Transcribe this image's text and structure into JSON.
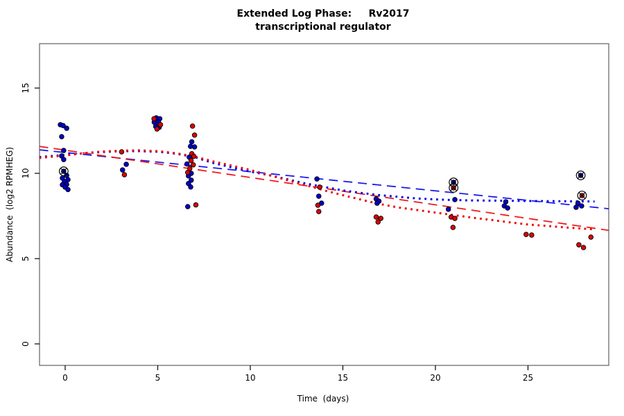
{
  "figure": {
    "title_line1": "Extended Log Phase:     Rv2017",
    "title_line2": "transcriptional regulator"
  },
  "chart_data": {
    "type": "scatter",
    "title": "Extended Log Phase: Rv2017 transcriptional regulator",
    "xlabel": "Time  (days)",
    "ylabel": "Abundance  (log2 RPMHEG)",
    "xticks": [
      0,
      5,
      10,
      15,
      20,
      25
    ],
    "yticks": [
      0,
      5,
      10,
      15
    ],
    "xlim": [
      -1.4,
      29.4
    ],
    "ylim": [
      -1.3,
      17.6
    ],
    "grid": false,
    "legend": "none",
    "frame_color": "#777777",
    "colors": {
      "blue_point": "#0000CC",
      "red_point": "#DD0000",
      "blue_line": "#1A1AEE",
      "red_line": "#EE1A1A",
      "flag_ring": "#000000"
    },
    "series": [
      {
        "name": "blue-points",
        "type": "points",
        "color": "#0000CC",
        "points": [
          [
            -0.26,
            12.85
          ],
          [
            -0.11,
            12.8
          ],
          [
            0.08,
            12.64
          ],
          [
            -0.19,
            12.15
          ],
          [
            -0.08,
            11.34
          ],
          [
            -0.19,
            11.02
          ],
          [
            -0.08,
            10.81
          ],
          [
            0.08,
            9.88
          ],
          [
            -0.15,
            9.72
          ],
          [
            0.15,
            9.63
          ],
          [
            -0.04,
            9.51
          ],
          [
            0.08,
            9.35
          ],
          [
            -0.15,
            9.33
          ],
          [
            0.0,
            9.19
          ],
          [
            0.15,
            9.05
          ],
          [
            3.3,
            10.53
          ],
          [
            3.1,
            10.2
          ],
          [
            4.92,
            13.25
          ],
          [
            5.11,
            13.2
          ],
          [
            4.81,
            13.0
          ],
          [
            5.04,
            13.0
          ],
          [
            4.89,
            12.75
          ],
          [
            5.08,
            12.7
          ],
          [
            6.84,
            11.85
          ],
          [
            6.77,
            11.58
          ],
          [
            6.99,
            11.55
          ],
          [
            6.7,
            10.95
          ],
          [
            6.58,
            10.55
          ],
          [
            6.81,
            10.0
          ],
          [
            6.66,
            9.85
          ],
          [
            6.81,
            9.6
          ],
          [
            6.66,
            9.4
          ],
          [
            6.78,
            9.2
          ],
          [
            6.62,
            8.05
          ],
          [
            13.6,
            9.67
          ],
          [
            13.7,
            8.66
          ],
          [
            13.85,
            8.25
          ],
          [
            16.8,
            8.5
          ],
          [
            16.95,
            8.37
          ],
          [
            16.85,
            8.25
          ],
          [
            21.05,
            8.46
          ],
          [
            20.7,
            7.89
          ],
          [
            23.8,
            8.33
          ],
          [
            23.72,
            8.09
          ],
          [
            23.9,
            7.97
          ],
          [
            27.7,
            8.25
          ],
          [
            27.9,
            8.09
          ],
          [
            27.6,
            8.01
          ]
        ]
      },
      {
        "name": "red-points",
        "type": "points",
        "color": "#DD0000",
        "points": [
          [
            3.05,
            11.26
          ],
          [
            3.2,
            9.92
          ],
          [
            4.8,
            13.2
          ],
          [
            5.15,
            12.85
          ],
          [
            4.96,
            12.6
          ],
          [
            6.88,
            12.77
          ],
          [
            6.99,
            12.24
          ],
          [
            6.84,
            11.15
          ],
          [
            6.95,
            11.0
          ],
          [
            6.8,
            10.75
          ],
          [
            6.92,
            10.5
          ],
          [
            6.73,
            10.28
          ],
          [
            6.62,
            10.05
          ],
          [
            7.06,
            8.15
          ],
          [
            13.75,
            9.19
          ],
          [
            13.65,
            8.13
          ],
          [
            13.7,
            7.76
          ],
          [
            16.8,
            7.44
          ],
          [
            17.05,
            7.36
          ],
          [
            16.9,
            7.15
          ],
          [
            20.85,
            7.44
          ],
          [
            21.05,
            7.36
          ],
          [
            20.95,
            6.83
          ],
          [
            24.9,
            6.42
          ],
          [
            25.2,
            6.38
          ],
          [
            28.4,
            6.26
          ],
          [
            27.75,
            5.81
          ],
          [
            28.0,
            5.65
          ]
        ]
      },
      {
        "name": "flagged-blue-points",
        "type": "circled-points",
        "color": "#0000CC",
        "points": [
          [
            -0.08,
            10.12
          ],
          [
            20.98,
            9.47
          ],
          [
            27.85,
            9.88
          ]
        ]
      },
      {
        "name": "flagged-red-points",
        "type": "circled-points",
        "color": "#DD0000",
        "points": [
          [
            20.98,
            9.15
          ],
          [
            27.92,
            8.7
          ]
        ]
      }
    ],
    "fits": [
      {
        "name": "blue-linear-fit",
        "style": "longdash",
        "color": "#1A1AEE",
        "points": [
          [
            -1.4,
            11.38
          ],
          [
            29.4,
            7.92
          ]
        ]
      },
      {
        "name": "red-linear-fit",
        "style": "longdash",
        "color": "#EE1A1A",
        "points": [
          [
            -1.4,
            11.58
          ],
          [
            29.4,
            6.65
          ]
        ]
      },
      {
        "name": "blue-smooth-fit",
        "style": "dotted",
        "color": "#0000EE",
        "points": [
          [
            -1.4,
            10.95
          ],
          [
            0,
            11.08
          ],
          [
            1,
            11.18
          ],
          [
            2,
            11.25
          ],
          [
            3,
            11.3
          ],
          [
            4,
            11.3
          ],
          [
            5,
            11.27
          ],
          [
            6,
            11.15
          ],
          [
            7,
            10.95
          ],
          [
            8,
            10.6
          ],
          [
            9,
            10.35
          ],
          [
            10,
            10.1
          ],
          [
            11,
            9.9
          ],
          [
            12,
            9.65
          ],
          [
            13,
            9.4
          ],
          [
            14,
            9.2
          ],
          [
            15,
            9.0
          ],
          [
            16,
            8.85
          ],
          [
            17,
            8.72
          ],
          [
            18,
            8.62
          ],
          [
            19,
            8.53
          ],
          [
            20,
            8.47
          ],
          [
            21,
            8.43
          ],
          [
            22,
            8.41
          ],
          [
            24,
            8.39
          ],
          [
            26,
            8.37
          ],
          [
            28.6,
            8.35
          ]
        ]
      },
      {
        "name": "red-smooth-fit",
        "style": "dotted",
        "color": "#EE0000",
        "points": [
          [
            -1.4,
            10.9
          ],
          [
            0,
            11.05
          ],
          [
            1,
            11.18
          ],
          [
            2,
            11.28
          ],
          [
            3,
            11.33
          ],
          [
            4,
            11.35
          ],
          [
            5,
            11.3
          ],
          [
            6,
            11.18
          ],
          [
            7,
            10.98
          ],
          [
            8,
            10.7
          ],
          [
            9,
            10.45
          ],
          [
            10,
            10.2
          ],
          [
            11,
            9.9
          ],
          [
            12,
            9.6
          ],
          [
            13,
            9.3
          ],
          [
            14,
            9.0
          ],
          [
            15,
            8.72
          ],
          [
            16,
            8.45
          ],
          [
            17,
            8.2
          ],
          [
            18,
            8.0
          ],
          [
            19,
            7.85
          ],
          [
            20,
            7.7
          ],
          [
            21,
            7.55
          ],
          [
            22,
            7.4
          ],
          [
            23,
            7.27
          ],
          [
            24,
            7.13
          ],
          [
            25,
            7.0
          ],
          [
            26,
            6.92
          ],
          [
            27,
            6.83
          ],
          [
            28.5,
            6.72
          ]
        ]
      }
    ]
  }
}
